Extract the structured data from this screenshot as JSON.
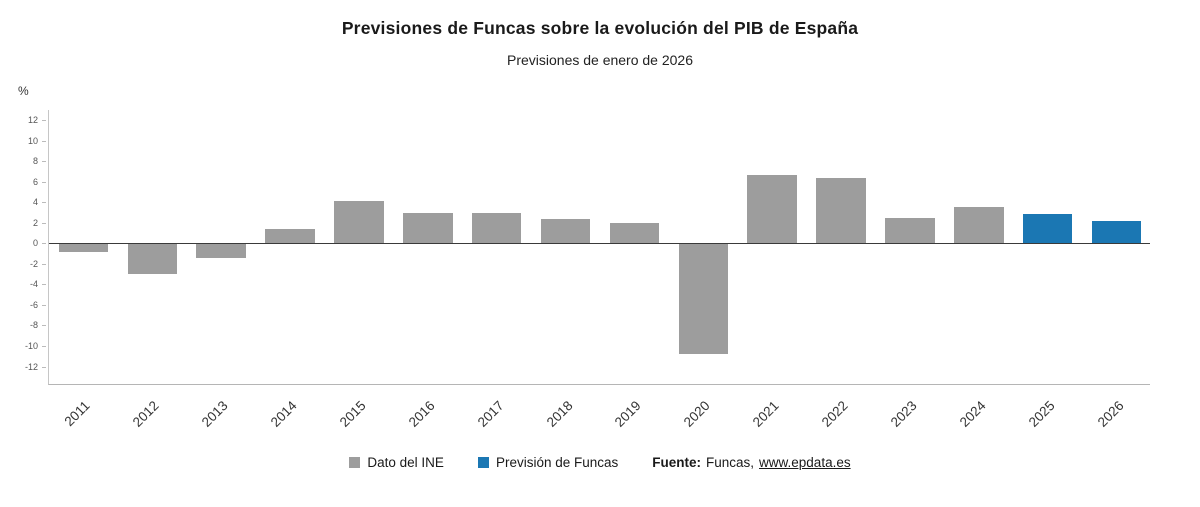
{
  "header": {
    "title": "Previsiones de Funcas sobre la evolución del PIB de España",
    "subtitle": "Previsiones de enero de 2026"
  },
  "chart_data": {
    "type": "bar",
    "title": "Previsiones de Funcas sobre la evolución del PIB de España",
    "subtitle": "Previsiones de enero de 2026",
    "unit_label": "%",
    "xlabel": "",
    "ylabel": "%",
    "categories": [
      "2011",
      "2012",
      "2013",
      "2014",
      "2015",
      "2016",
      "2017",
      "2018",
      "2019",
      "2020",
      "2021",
      "2022",
      "2023",
      "2024",
      "2025",
      "2026"
    ],
    "series": [
      {
        "name": "Dato del INE",
        "color": "#9d9d9d",
        "values": [
          -0.8,
          -3.0,
          -1.4,
          1.4,
          4.1,
          3.0,
          3.0,
          2.4,
          2.0,
          -10.8,
          6.7,
          6.4,
          2.5,
          3.5,
          null,
          null
        ]
      },
      {
        "name": "Previsión de Funcas",
        "color": "#1b77b3",
        "values": [
          null,
          null,
          null,
          null,
          null,
          null,
          null,
          null,
          null,
          null,
          null,
          null,
          null,
          null,
          2.9,
          2.2
        ]
      }
    ],
    "ylim": [
      -13.8,
      13.0
    ],
    "yticks": [
      -12,
      -10,
      -8,
      -6,
      -4,
      -2,
      0,
      2,
      4,
      6,
      8,
      10,
      12
    ],
    "grid": false,
    "legend_position": "bottom"
  },
  "source": {
    "prefix": "Fuente:",
    "publisher": "Funcas,",
    "link": "www.epdata.es"
  }
}
